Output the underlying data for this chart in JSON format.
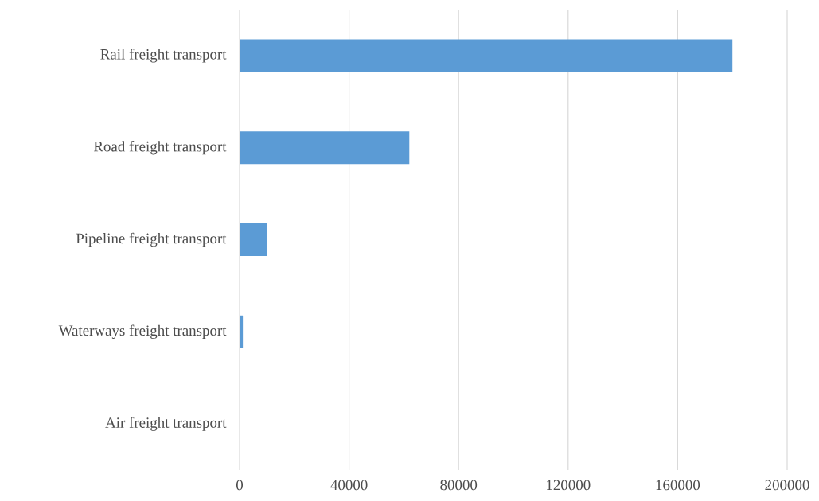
{
  "chart_data": {
    "type": "bar",
    "orientation": "horizontal",
    "categories": [
      "Rail freight transport",
      "Road freight transport",
      "Pipeline freight transport",
      "Waterways freight transport",
      "Air freight transport"
    ],
    "values": [
      180000,
      62000,
      10000,
      1200,
      0
    ],
    "color": "#5b9bd5",
    "xlim": [
      0,
      200000
    ],
    "xticks": [
      0,
      40000,
      80000,
      120000,
      160000,
      200000
    ],
    "grid": "x"
  }
}
